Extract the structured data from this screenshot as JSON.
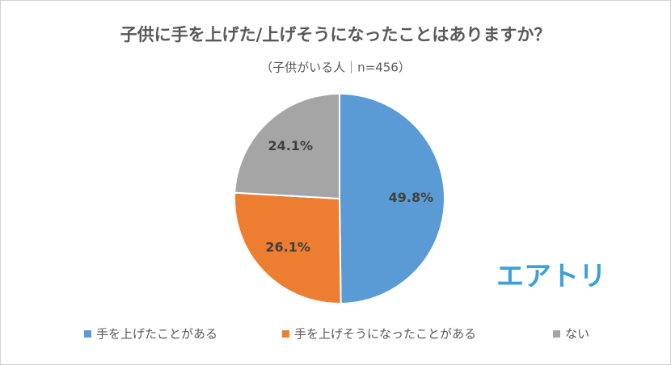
{
  "chart_data": {
    "type": "pie",
    "title": "子供に手を上げた/上げそうになったことはありますか？",
    "subtitle": "（子供がいる人｜n=456）",
    "categories": [
      "手を上げたことがある",
      "手を上げそうになったことがある",
      "ない"
    ],
    "values": [
      49.8,
      26.1,
      24.1
    ],
    "value_labels": [
      "49.8%",
      "26.1%",
      "24.1%"
    ],
    "colors": [
      "#5b9bd5",
      "#ed7d31",
      "#a5a5a5"
    ],
    "legend": "bottom",
    "logo": "エアトリ"
  }
}
